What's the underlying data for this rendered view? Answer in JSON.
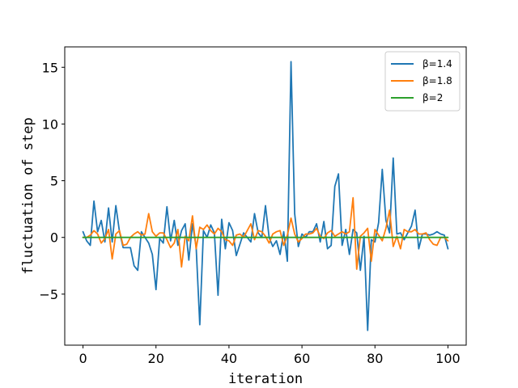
{
  "chart_data": {
    "type": "line",
    "xlabel": "iteration",
    "ylabel": "fluctuation of step",
    "xlim": [
      -5,
      105
    ],
    "ylim": [
      -9.5,
      16.8
    ],
    "xticks": [
      0,
      20,
      40,
      60,
      80,
      100
    ],
    "yticks": [
      -5,
      0,
      5,
      10,
      15
    ],
    "xtick_labels": [
      "0",
      "20",
      "40",
      "60",
      "80",
      "100"
    ],
    "ytick_labels": [
      "−5",
      "0",
      "5",
      "10",
      "15"
    ],
    "grid": false,
    "legend_position": "top-right",
    "series": [
      {
        "name": "β=1.4",
        "color": "#1f77b4",
        "values": [
          0.5,
          -0.3,
          -0.7,
          3.2,
          0.5,
          1.5,
          -0.4,
          2.6,
          -0.4,
          2.8,
          0.5,
          -0.9,
          -0.9,
          -0.9,
          -2.5,
          -2.9,
          0.5,
          0.0,
          -0.5,
          -1.5,
          -4.6,
          -0.1,
          -0.5,
          2.7,
          -0.3,
          1.5,
          -0.7,
          0.6,
          1.2,
          -2.0,
          1.2,
          -0.8,
          -7.7,
          0.6,
          0.0,
          1.1,
          0.4,
          -5.1,
          1.6,
          -1.0,
          1.3,
          0.6,
          -1.6,
          -0.6,
          0.4,
          0.0,
          -0.4,
          2.1,
          0.4,
          0.0,
          2.8,
          0.0,
          -0.8,
          -0.3,
          -1.5,
          0.5,
          -2.1,
          15.5,
          2.1,
          -0.8,
          0.3,
          0.0,
          0.5,
          0.5,
          1.2,
          -0.4,
          1.4,
          -1.0,
          -0.7,
          4.5,
          5.6,
          -0.7,
          0.7,
          -1.5,
          0.7,
          0.4,
          -2.9,
          0.1,
          -8.2,
          -0.2,
          -0.4,
          1.3,
          6.0,
          1.5,
          0.4,
          7.0,
          0.3,
          0.4,
          -0.2,
          0.4,
          1.0,
          2.4,
          -1.0,
          0.3,
          0.3,
          0.2,
          0.3,
          0.5,
          0.3,
          0.2,
          -1.0
        ]
      },
      {
        "name": "β=1.8",
        "color": "#ff7f0e",
        "values": [
          0.0,
          0.0,
          0.2,
          0.6,
          0.3,
          -0.5,
          -0.1,
          0.7,
          -1.9,
          0.3,
          0.6,
          -0.7,
          -0.6,
          0.0,
          0.3,
          0.5,
          0.2,
          0.3,
          2.1,
          0.5,
          0.1,
          0.4,
          0.4,
          -0.2,
          -0.9,
          -0.5,
          0.7,
          -2.6,
          0.1,
          -0.3,
          1.9,
          -1.0,
          0.9,
          0.7,
          1.1,
          0.6,
          0.3,
          0.8,
          0.5,
          -0.2,
          -0.3,
          -0.7,
          0.2,
          0.3,
          0.0,
          0.6,
          1.2,
          -0.2,
          0.6,
          0.5,
          0.1,
          -0.5,
          0.3,
          0.5,
          0.6,
          -0.7,
          0.2,
          1.7,
          0.3,
          -0.4,
          -0.1,
          0.3,
          0.3,
          0.4,
          0.8,
          0.1,
          -0.1,
          0.4,
          0.6,
          0.1,
          0.3,
          0.5,
          0.3,
          0.5,
          3.5,
          -2.8,
          0.1,
          0.4,
          0.8,
          -2.1,
          0.7,
          0.2,
          -0.3,
          0.8,
          2.4,
          -0.8,
          0.1,
          -1.0,
          0.7,
          0.5,
          0.5,
          0.7,
          0.3,
          0.3,
          0.4,
          -0.2,
          -0.6,
          -0.7,
          0.0,
          0.0,
          -0.3
        ]
      },
      {
        "name": "β=2",
        "color": "#2ca02c",
        "values": [
          0,
          0,
          0,
          0,
          0,
          0,
          0,
          0,
          0,
          0,
          0,
          0,
          0,
          0,
          0,
          0,
          0,
          0,
          0,
          0,
          0,
          0,
          0,
          0,
          0,
          0,
          0,
          0,
          0,
          0,
          0,
          0,
          0,
          0,
          0,
          0,
          0,
          0,
          0,
          0,
          0,
          0,
          0,
          0,
          0,
          0,
          0,
          0,
          0,
          0,
          0,
          0,
          0,
          0,
          0,
          0,
          0,
          0,
          0,
          0,
          0,
          0,
          0,
          0,
          0,
          0,
          0,
          0,
          0,
          0,
          0,
          0,
          0,
          0,
          0,
          0,
          0,
          0,
          0,
          0,
          0,
          0,
          0,
          0,
          0,
          0,
          0,
          0,
          0,
          0,
          0,
          0,
          0,
          0,
          0,
          0,
          0,
          0,
          0,
          0,
          0
        ]
      }
    ]
  }
}
